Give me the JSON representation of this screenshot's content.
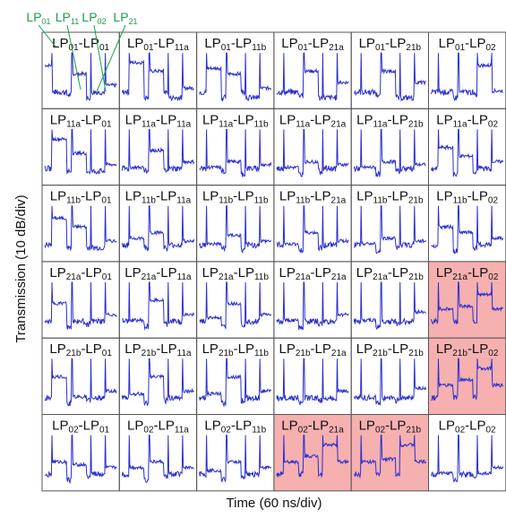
{
  "chart_data": {
    "type": "line",
    "xlabel": "Time (60 ns/div)",
    "ylabel": "Transmission (10 dB/div)",
    "mode_labels": [
      {
        "base": "LP",
        "sub": "01"
      },
      {
        "base": "LP",
        "sub": "11"
      },
      {
        "base": "LP",
        "sub": "02"
      },
      {
        "base": "LP",
        "sub": "21"
      }
    ],
    "label_arrow_color": "#1aa04a",
    "trace_color": "#2a2fd0",
    "highlight_color": "#f4a2a2",
    "grid": [
      [
        {
          "a": "01",
          "b": "01",
          "hl": false,
          "p": [
            0.7,
            0.2,
            0.15,
            0.55,
            0.1,
            0.2,
            0.35
          ]
        },
        {
          "a": "01",
          "b": "11a",
          "hl": false,
          "p": [
            0.2,
            0.75,
            0.1,
            0.6,
            0.2,
            0.1,
            0.3
          ]
        },
        {
          "a": "01",
          "b": "11b",
          "hl": false,
          "p": [
            0.2,
            0.65,
            0.1,
            0.55,
            0.2,
            0.1,
            0.3
          ]
        },
        {
          "a": "01",
          "b": "21a",
          "hl": false,
          "p": [
            0.2,
            0.2,
            0.15,
            0.6,
            0.1,
            0.1,
            0.4
          ]
        },
        {
          "a": "01",
          "b": "21b",
          "hl": false,
          "p": [
            0.2,
            0.2,
            0.15,
            0.6,
            0.1,
            0.1,
            0.4
          ]
        },
        {
          "a": "01",
          "b": "02",
          "hl": false,
          "p": [
            0.2,
            0.2,
            0.1,
            0.2,
            0.15,
            0.7,
            0.25
          ]
        }
      ],
      [
        {
          "a": "11a",
          "b": "01",
          "hl": false,
          "p": [
            0.2,
            0.75,
            0.15,
            0.5,
            0.15,
            0.15,
            0.3
          ]
        },
        {
          "a": "11a",
          "b": "11a",
          "hl": false,
          "p": [
            0.2,
            0.25,
            0.15,
            0.55,
            0.15,
            0.2,
            0.35
          ]
        },
        {
          "a": "11a",
          "b": "11b",
          "hl": false,
          "p": [
            0.2,
            0.25,
            0.15,
            0.35,
            0.1,
            0.2,
            0.3
          ]
        },
        {
          "a": "11a",
          "b": "21a",
          "hl": false,
          "p": [
            0.2,
            0.25,
            0.1,
            0.35,
            0.15,
            0.2,
            0.3
          ]
        },
        {
          "a": "11a",
          "b": "21b",
          "hl": false,
          "p": [
            0.2,
            0.25,
            0.1,
            0.35,
            0.15,
            0.2,
            0.3
          ]
        },
        {
          "a": "11a",
          "b": "02",
          "hl": false,
          "p": [
            0.2,
            0.6,
            0.1,
            0.45,
            0.15,
            0.2,
            0.35
          ]
        }
      ],
      [
        {
          "a": "11b",
          "b": "01",
          "hl": false,
          "p": [
            0.2,
            0.7,
            0.15,
            0.55,
            0.15,
            0.15,
            0.3
          ]
        },
        {
          "a": "11b",
          "b": "11a",
          "hl": false,
          "p": [
            0.2,
            0.35,
            0.15,
            0.45,
            0.15,
            0.2,
            0.3
          ]
        },
        {
          "a": "11b",
          "b": "11b",
          "hl": false,
          "p": [
            0.2,
            0.25,
            0.15,
            0.4,
            0.1,
            0.2,
            0.3
          ]
        },
        {
          "a": "11b",
          "b": "21a",
          "hl": false,
          "p": [
            0.2,
            0.25,
            0.1,
            0.45,
            0.15,
            0.2,
            0.3
          ]
        },
        {
          "a": "11b",
          "b": "21b",
          "hl": false,
          "p": [
            0.2,
            0.25,
            0.1,
            0.35,
            0.15,
            0.2,
            0.3
          ]
        },
        {
          "a": "11b",
          "b": "02",
          "hl": false,
          "p": [
            0.2,
            0.55,
            0.1,
            0.45,
            0.15,
            0.2,
            0.35
          ]
        }
      ],
      [
        {
          "a": "21a",
          "b": "01",
          "hl": false,
          "p": [
            0.2,
            0.55,
            0.1,
            0.2,
            0.15,
            0.2,
            0.35
          ]
        },
        {
          "a": "21a",
          "b": "11a",
          "hl": false,
          "p": [
            0.2,
            0.25,
            0.1,
            0.6,
            0.15,
            0.2,
            0.35
          ]
        },
        {
          "a": "21a",
          "b": "11b",
          "hl": false,
          "p": [
            0.2,
            0.3,
            0.1,
            0.55,
            0.15,
            0.2,
            0.35
          ]
        },
        {
          "a": "21a",
          "b": "21a",
          "hl": false,
          "p": [
            0.2,
            0.25,
            0.1,
            0.2,
            0.15,
            0.2,
            0.35
          ]
        },
        {
          "a": "21a",
          "b": "21b",
          "hl": false,
          "p": [
            0.2,
            0.25,
            0.1,
            0.2,
            0.15,
            0.2,
            0.4
          ]
        },
        {
          "a": "21a",
          "b": "02",
          "hl": true,
          "p": [
            0.2,
            0.45,
            0.2,
            0.5,
            0.2,
            0.7,
            0.45
          ]
        }
      ],
      [
        {
          "a": "21b",
          "b": "01",
          "hl": false,
          "p": [
            0.2,
            0.6,
            0.1,
            0.25,
            0.15,
            0.2,
            0.35
          ]
        },
        {
          "a": "21b",
          "b": "11a",
          "hl": false,
          "p": [
            0.2,
            0.3,
            0.1,
            0.6,
            0.15,
            0.2,
            0.35
          ]
        },
        {
          "a": "21b",
          "b": "11b",
          "hl": false,
          "p": [
            0.2,
            0.3,
            0.1,
            0.6,
            0.15,
            0.2,
            0.35
          ]
        },
        {
          "a": "21b",
          "b": "21a",
          "hl": false,
          "p": [
            0.2,
            0.2,
            0.1,
            0.2,
            0.15,
            0.2,
            0.35
          ]
        },
        {
          "a": "21b",
          "b": "21b",
          "hl": false,
          "p": [
            0.2,
            0.2,
            0.1,
            0.2,
            0.15,
            0.2,
            0.4
          ]
        },
        {
          "a": "21b",
          "b": "02",
          "hl": true,
          "p": [
            0.2,
            0.45,
            0.2,
            0.55,
            0.2,
            0.75,
            0.45
          ]
        }
      ],
      [
        {
          "a": "02",
          "b": "01",
          "hl": false,
          "p": [
            0.2,
            0.45,
            0.1,
            0.4,
            0.15,
            0.2,
            0.35
          ]
        },
        {
          "a": "02",
          "b": "11a",
          "hl": false,
          "p": [
            0.2,
            0.35,
            0.1,
            0.45,
            0.15,
            0.2,
            0.35
          ]
        },
        {
          "a": "02",
          "b": "11b",
          "hl": false,
          "p": [
            0.2,
            0.3,
            0.1,
            0.45,
            0.15,
            0.2,
            0.35
          ]
        },
        {
          "a": "02",
          "b": "21a",
          "hl": true,
          "p": [
            0.2,
            0.45,
            0.2,
            0.55,
            0.2,
            0.75,
            0.45
          ]
        },
        {
          "a": "02",
          "b": "21b",
          "hl": true,
          "p": [
            0.2,
            0.45,
            0.2,
            0.5,
            0.2,
            0.75,
            0.45
          ]
        },
        {
          "a": "02",
          "b": "02",
          "hl": false,
          "p": [
            0.2,
            0.25,
            0.1,
            0.2,
            0.15,
            0.25,
            0.35
          ]
        }
      ]
    ]
  }
}
